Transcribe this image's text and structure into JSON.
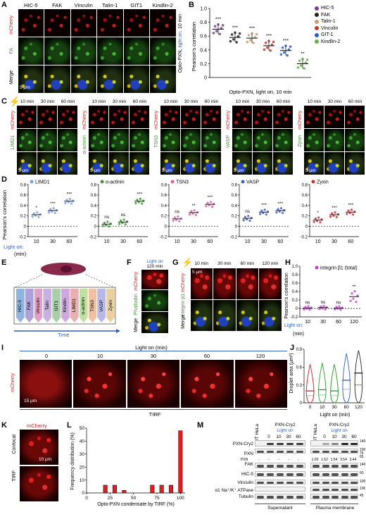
{
  "panels": {
    "A": "A",
    "B": "B",
    "C": "C",
    "D": "D",
    "E": "E",
    "F": "F",
    "G": "G",
    "H": "H",
    "I": "I",
    "J": "J",
    "K": "K",
    "L": "L",
    "M": "M"
  },
  "panelA": {
    "columns": [
      "HIC-5",
      "FAK",
      "Vinculin",
      "Talin-1",
      "GIT1",
      "Kindlin-2"
    ],
    "rows": [
      "mCherry",
      "FA",
      "Merge"
    ],
    "side_label_1": "Opto-PXN,",
    "side_label_2": "light on,",
    "side_label_3": "10 min",
    "scale": "5 μm"
  },
  "panelB": {
    "ylabel": "Pearson's correlation",
    "xlabel": "Opto-PXN, light on, 10 min",
    "legend": [
      "HIC-5",
      "FAK",
      "Talin-1",
      "Vinculin",
      "GIT-1",
      "Kindlin-2"
    ],
    "legend_colors": [
      "#7d3c98",
      "#222222",
      "#c8a070",
      "#c0392b",
      "#2e5fc4",
      "#6ab04c"
    ],
    "sig": [
      "***",
      "***",
      "***",
      "***",
      "***",
      "**"
    ]
  },
  "chart_data": [
    {
      "type": "scatter",
      "panel": "B",
      "categories": [
        "HIC-5",
        "FAK",
        "Talin-1",
        "Vinculin",
        "GIT-1",
        "Kindlin-2"
      ],
      "values": [
        0.7,
        0.58,
        0.57,
        0.46,
        0.39,
        0.2
      ],
      "ylabel": "Pearson's correlation",
      "xlabel": "Opto-PXN, light on, 10 min",
      "ylim": [
        0,
        1.0
      ],
      "yticks": [
        "0",
        "0.2",
        "0.4",
        "0.6",
        "0.8",
        "1.0"
      ]
    },
    {
      "type": "scatter",
      "panel": "D",
      "xlabel": "Light on: (min)",
      "ylabel": "Pearson's correlation",
      "categories": [
        "10",
        "30",
        "60"
      ],
      "ylim": [
        -0.2,
        0.8
      ],
      "yticks": [
        "-0.2",
        "0",
        "0.2",
        "0.4",
        "0.6",
        "0.8"
      ],
      "series": [
        {
          "name": "LIMD1",
          "values": [
            0.22,
            0.3,
            0.48
          ],
          "sig": [
            "*",
            "***",
            "***"
          ]
        },
        {
          "name": "α-actinin",
          "values": [
            0.04,
            0.08,
            0.48
          ],
          "sig": [
            "ns",
            "ns",
            "***"
          ]
        },
        {
          "name": "TSN3",
          "values": [
            0.14,
            0.26,
            0.42
          ],
          "sig": [
            "ns",
            "**",
            "***"
          ]
        },
        {
          "name": "VASP",
          "values": [
            0.15,
            0.27,
            0.3
          ],
          "sig": [
            "ns",
            "***",
            "***"
          ]
        },
        {
          "name": "Zyxin",
          "values": [
            0.12,
            0.22,
            0.27
          ],
          "sig": [
            "*",
            "***",
            "***"
          ]
        }
      ]
    },
    {
      "type": "scatter",
      "panel": "H",
      "categories": [
        "10",
        "30",
        "60",
        "120"
      ],
      "series": [
        {
          "name": "integrin β1 (total)",
          "values": [
            0.01,
            0.02,
            0.01,
            0.28
          ]
        }
      ],
      "sig": [
        "ns",
        "ns",
        "ns",
        "**"
      ],
      "ylabel": "Pearson's correlation",
      "xlabel": "Light on: (min)",
      "ylim": [
        -0.2,
        1.0
      ],
      "yticks": [
        "-0.2",
        "0",
        "0.2",
        "0.4",
        "0.6",
        "0.8",
        "1.0"
      ]
    },
    {
      "type": "box",
      "panel": "J",
      "categories": [
        "0",
        "10",
        "30",
        "60",
        "120"
      ],
      "values": [
        0.2,
        0.22,
        0.2,
        0.38,
        0.5
      ],
      "ylabel": "Droplet area (μm²)",
      "xlabel": "Light on (min)",
      "ylim": [
        0,
        0.9
      ],
      "yticks": [
        "0",
        "0.3",
        "0.6",
        "0.9"
      ]
    },
    {
      "type": "bar",
      "panel": "L",
      "categories": [
        "20",
        "30",
        "40",
        "70",
        "80",
        "90",
        "100"
      ],
      "values": [
        6,
        6,
        2,
        6,
        6,
        6,
        48
      ],
      "ylabel": "Frequency distribution (%)",
      "xlabel": "Opto-PXN condensate by TIRF (%)",
      "ylim": [
        0,
        50
      ],
      "yticks": [
        "0",
        "10",
        "20",
        "30",
        "40",
        "50"
      ],
      "xticks": [
        "0",
        "25",
        "50",
        "75",
        "100"
      ]
    }
  ],
  "panelC": {
    "times": [
      "10 min",
      "30 min",
      "60 min"
    ],
    "proteins": [
      "LIMD1",
      "α-actinin",
      "TSN3",
      "VASP",
      "Zyxin"
    ],
    "row_red": "mCherry",
    "scale": "5 μm"
  },
  "panelD": {
    "lighton": "Light on:",
    "unit": "(min)",
    "ylabel": "Pearson's correlation"
  },
  "panelE": {
    "proteins": [
      "HIC-5",
      "FAK",
      "Vinculin",
      "Talin",
      "GIT1",
      "Kindlin",
      "LIMD1",
      "α-actinin",
      "TSN3",
      "VASP",
      "Zyxin"
    ],
    "colors": [
      "#8fb4e0",
      "#b0a0d8",
      "#e0a0c8",
      "#c8b0e0",
      "#a8d0a8",
      "#d0a8e0",
      "#e8b0b0",
      "#c0e0a0",
      "#f0c0a0",
      "#b8b8e8",
      "#e8d0a0"
    ],
    "time_label": "Time"
  },
  "panelF": {
    "light": "Light on",
    "time": "120 min",
    "row1": "mCherry",
    "row2": "Phalloidin",
    "row3": "Merge"
  },
  "panelG": {
    "times": [
      "10 min",
      "30 min",
      "60 min",
      "120 min"
    ],
    "row1": "integrin β1 mCherry",
    "row2": "Merge",
    "scale": "5 μm"
  },
  "panelH": {
    "legend": "integrin β1 (total)",
    "ylabel": "Pearson's correlation",
    "lighton": "Light on:",
    "unit": "(min)"
  },
  "panelI": {
    "title": "Light on (min)",
    "times": [
      "0",
      "10",
      "30",
      "60",
      "120"
    ],
    "row": "mCherry",
    "scale": "15 μm",
    "footer": "TIRF"
  },
  "panelJ": {
    "ylabel": "Droplet area (μm²)",
    "xlabel": "Light on (min)"
  },
  "panelK": {
    "title": "mCherry",
    "rows": [
      "Confocal",
      "TIRF"
    ],
    "scale": "10 μm"
  },
  "panelL": {
    "ylabel": "Frequency distribution (%)",
    "xlabel": "Opto-PXN condensate by TIRF (%)"
  },
  "panelM": {
    "left_wt": "WT HeLa",
    "left_title": "PXN-Cry2",
    "left_light": "Light on",
    "right_wt": "WT HeLa",
    "right_title": "PXN-Cry2",
    "right_light": "Light on",
    "lanes": [
      "0",
      "10",
      "30",
      "60"
    ],
    "rows": [
      "PXN-Cry2",
      "PXN",
      "FAK",
      "HIC-5",
      "Vinculin",
      "α1 Na⁺/K⁺ ATPase",
      "Tubulin"
    ],
    "pxn_left_label": "PXN",
    "pxn_left_vals": [
      "-",
      "-",
      "-",
      "-",
      "-"
    ],
    "pxn_right_vals": [
      "1.00",
      "1.52",
      "1.54",
      "3.54",
      "3.44"
    ],
    "mw": [
      "140",
      "100",
      "75",
      "65",
      "140",
      "60",
      "100",
      "100",
      "45"
    ],
    "footer_left": "Supernatant",
    "footer_right": "Plasma membrane"
  }
}
